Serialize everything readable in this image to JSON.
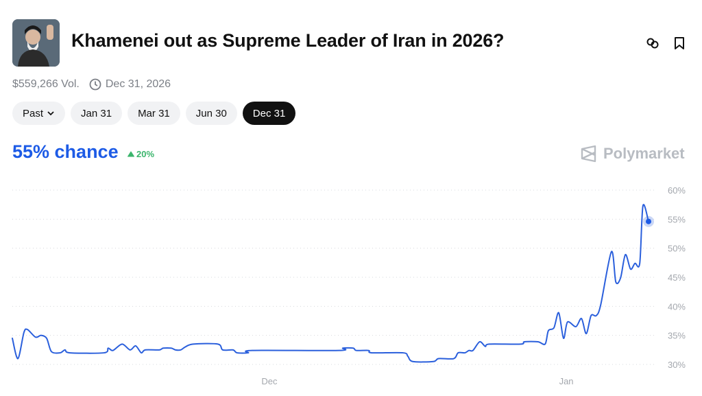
{
  "header": {
    "title": "Khamenei out as Supreme Leader of Iran in 2026?",
    "volume": "$559,266 Vol.",
    "end_date": "Dec 31, 2026",
    "icons": [
      "link-icon",
      "bookmark-icon",
      "clock-icon"
    ]
  },
  "tabs": [
    {
      "label": "Past",
      "active": false,
      "dropdown": true
    },
    {
      "label": "Jan 31",
      "active": false
    },
    {
      "label": "Mar 31",
      "active": false
    },
    {
      "label": "Jun 30",
      "active": false
    },
    {
      "label": "Dec 31",
      "active": true
    }
  ],
  "summary": {
    "chance": "55% chance",
    "change": "20%",
    "change_direction": "up"
  },
  "brand": {
    "name": "Polymarket"
  },
  "colors": {
    "accent": "#1d5be6",
    "positive": "#3bb56c",
    "line": "#2a5fdc"
  },
  "chart_data": {
    "type": "line",
    "title": "",
    "xlabel": "",
    "ylabel": "",
    "ylim": [
      30,
      60
    ],
    "yticks": [
      "30%",
      "35%",
      "40%",
      "45%",
      "50%",
      "55%",
      "60%"
    ],
    "ytick_values": [
      30,
      35,
      40,
      45,
      50,
      55,
      60
    ],
    "xticks": [
      {
        "label": "Dec",
        "date": "2025-12-01T00:00"
      },
      {
        "label": "Jan",
        "date": "2026-01-01T00:00"
      }
    ],
    "grid": "horizontal dotted",
    "y_axis_position": "right",
    "series": [
      {
        "points": [
          [
            "2025-11-04T04:00",
            34.5
          ],
          [
            "2025-11-04T18:00",
            31
          ],
          [
            "2025-11-05T09:00",
            35.5
          ],
          [
            "2025-11-05T18:00",
            36
          ],
          [
            "2025-11-06T14:00",
            34.7
          ],
          [
            "2025-11-07T04:00",
            35
          ],
          [
            "2025-11-07T18:00",
            34.5
          ],
          [
            "2025-11-08T06:00",
            32.2
          ],
          [
            "2025-11-09T04:00",
            32
          ],
          [
            "2025-11-09T16:00",
            32.5
          ],
          [
            "2025-11-10T04:00",
            32
          ],
          [
            "2025-11-13T18:00",
            32
          ],
          [
            "2025-11-14T04:00",
            32.8
          ],
          [
            "2025-11-14T16:00",
            32.4
          ],
          [
            "2025-11-15T15:00",
            33.5
          ],
          [
            "2025-11-16T11:00",
            32.5
          ],
          [
            "2025-11-17T01:00",
            33.2
          ],
          [
            "2025-11-17T15:00",
            32
          ],
          [
            "2025-11-18T01:00",
            32.5
          ],
          [
            "2025-11-19T12:00",
            32.5
          ],
          [
            "2025-11-19T22:00",
            32.8
          ],
          [
            "2025-11-20T18:00",
            32.8
          ],
          [
            "2025-11-21T05:00",
            32.5
          ],
          [
            "2025-11-21T18:00",
            32.5
          ],
          [
            "2025-11-22T05:00",
            33
          ],
          [
            "2025-11-23T01:00",
            33.5
          ],
          [
            "2025-11-25T15:00",
            33.5
          ],
          [
            "2025-11-26T03:00",
            32.5
          ],
          [
            "2025-11-27T05:00",
            32.5
          ],
          [
            "2025-11-27T15:00",
            32
          ],
          [
            "2025-11-28T19:00",
            32
          ],
          [
            "2025-11-29T05:00",
            32.4
          ],
          [
            "2025-12-08T07:00",
            32.4
          ],
          [
            "2025-12-08T16:00",
            32.8
          ],
          [
            "2025-12-09T18:00",
            32.8
          ],
          [
            "2025-12-10T02:00",
            32.4
          ],
          [
            "2025-12-11T09:00",
            32.4
          ],
          [
            "2025-12-11T16:00",
            32
          ],
          [
            "2025-12-14T23:00",
            32
          ],
          [
            "2025-12-15T11:00",
            31.4
          ],
          [
            "2025-12-15T23:00",
            30.5
          ],
          [
            "2025-12-18T03:00",
            30.5
          ],
          [
            "2025-12-18T16:00",
            31
          ],
          [
            "2025-12-20T06:00",
            31
          ],
          [
            "2025-12-20T17:00",
            32
          ],
          [
            "2025-12-21T10:00",
            32
          ],
          [
            "2025-12-21T20:00",
            32.4
          ],
          [
            "2025-12-22T06:00",
            32.4
          ],
          [
            "2025-12-22T23:00",
            33.9
          ],
          [
            "2025-12-23T13:00",
            33.1
          ],
          [
            "2025-12-23T23:00",
            33.5
          ],
          [
            "2025-12-27T06:00",
            33.5
          ],
          [
            "2025-12-27T15:00",
            33.9
          ],
          [
            "2025-12-29T01:00",
            33.9
          ],
          [
            "2025-12-29T19:00",
            33.5
          ],
          [
            "2025-12-30T03:00",
            35.8
          ],
          [
            "2025-12-30T17:00",
            36.3
          ],
          [
            "2025-12-31T05:00",
            38.9
          ],
          [
            "2025-12-31T17:00",
            34.5
          ],
          [
            "2026-01-01T03:00",
            37.3
          ],
          [
            "2026-01-02T00:00",
            36.5
          ],
          [
            "2026-01-02T14:00",
            37.9
          ],
          [
            "2026-01-03T02:00",
            35.3
          ],
          [
            "2026-01-03T14:00",
            38.4
          ],
          [
            "2026-01-04T03:00",
            38.4
          ],
          [
            "2026-01-04T14:00",
            40.2
          ],
          [
            "2026-01-05T17:00",
            49.4
          ],
          [
            "2026-01-06T04:00",
            44.2
          ],
          [
            "2026-01-06T16:00",
            44.9
          ],
          [
            "2026-01-07T04:00",
            48.9
          ],
          [
            "2026-01-07T17:00",
            46.4
          ],
          [
            "2026-01-08T04:00",
            47.4
          ],
          [
            "2026-01-08T16:00",
            47.4
          ],
          [
            "2026-01-09T00:00",
            57.3
          ],
          [
            "2026-01-09T14:00",
            54.6
          ]
        ]
      }
    ]
  }
}
